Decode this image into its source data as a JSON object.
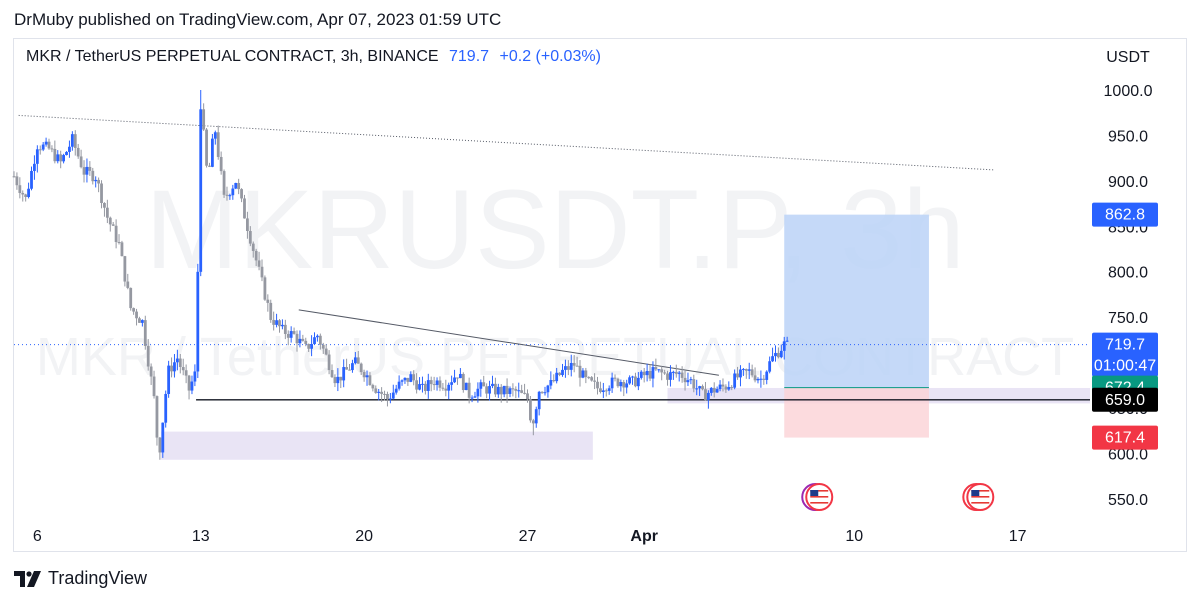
{
  "header": {
    "published": "DrMuby published on TradingView.com, Apr 07, 2023 01:59 UTC"
  },
  "legend": {
    "symbol": "MKR / TetherUS PERPETUAL CONTRACT, 3h, BINANCE",
    "last": "719.7",
    "change": "+0.2 (+0.03%)"
  },
  "footer": {
    "brand": "TradingView"
  },
  "colors": {
    "up": "#2962ff",
    "down": "#9598a1",
    "accent": "#2962ff",
    "target_zone": "#bbd2f7",
    "stop_zone": "#fbd2d6",
    "demand_zone": "#e3ddf3",
    "label_green": "#089981",
    "label_red": "#f23645",
    "label_black": "#000000"
  },
  "chart_data": {
    "type": "candlestick",
    "title": "MKR / TetherUS PERPETUAL CONTRACT, 3h, BINANCE",
    "watermark": "MKRUSDT.P, 3h",
    "watermark_sub": "MKR / TetherUS PERPETUAL CONTRACT",
    "y_unit": "USDT",
    "ylim": [
      530,
      1055
    ],
    "y_ticks": [
      "550.0",
      "600.0",
      "650.0",
      "700.0",
      "750.0",
      "800.0",
      "850.0",
      "900.0",
      "950.0",
      "1000.0"
    ],
    "x_ticks": [
      {
        "label": "6",
        "day": 6
      },
      {
        "label": "13",
        "day": 13
      },
      {
        "label": "20",
        "day": 20
      },
      {
        "label": "27",
        "day": 27
      },
      {
        "label": "Apr",
        "day": 32,
        "bold": true
      },
      {
        "label": "10",
        "day": 41
      },
      {
        "label": "17",
        "day": 48
      }
    ],
    "xlim_days": [
      5.0,
      51.1
    ],
    "x_axis_note": "days of March 2023; Apr 1 = day 32",
    "price_path": [
      [
        5.0,
        905
      ],
      [
        5.5,
        880
      ],
      [
        6.0,
        940
      ],
      [
        6.5,
        935
      ],
      [
        7.0,
        920
      ],
      [
        7.5,
        945
      ],
      [
        8.0,
        910
      ],
      [
        8.5,
        905
      ],
      [
        9.0,
        860
      ],
      [
        9.5,
        830
      ],
      [
        10.0,
        760
      ],
      [
        10.5,
        745
      ],
      [
        11.0,
        660
      ],
      [
        11.2,
        595
      ],
      [
        11.6,
        690
      ],
      [
        12.0,
        705
      ],
      [
        12.5,
        670
      ],
      [
        12.8,
        690
      ],
      [
        13.0,
        985
      ],
      [
        13.3,
        900
      ],
      [
        13.6,
        960
      ],
      [
        14.0,
        880
      ],
      [
        14.5,
        900
      ],
      [
        15.0,
        850
      ],
      [
        15.5,
        800
      ],
      [
        16.0,
        750
      ],
      [
        16.5,
        735
      ],
      [
        17.0,
        730
      ],
      [
        17.5,
        715
      ],
      [
        18.0,
        730
      ],
      [
        18.4,
        705
      ],
      [
        18.8,
        680
      ],
      [
        19.2,
        690
      ],
      [
        19.6,
        700
      ],
      [
        20.0,
        690
      ],
      [
        20.5,
        672
      ],
      [
        21.0,
        660
      ],
      [
        21.5,
        675
      ],
      [
        22.0,
        684
      ],
      [
        22.5,
        670
      ],
      [
        23.0,
        680
      ],
      [
        23.5,
        676
      ],
      [
        24.0,
        688
      ],
      [
        24.5,
        665
      ],
      [
        25.0,
        672
      ],
      [
        25.5,
        670
      ],
      [
        26.0,
        668
      ],
      [
        26.5,
        668
      ],
      [
        27.0,
        660
      ],
      [
        27.2,
        630
      ],
      [
        27.5,
        670
      ],
      [
        28.0,
        676
      ],
      [
        28.5,
        690
      ],
      [
        29.0,
        698
      ],
      [
        29.5,
        680
      ],
      [
        30.0,
        672
      ],
      [
        30.5,
        677
      ],
      [
        31.0,
        680
      ],
      [
        31.5,
        678
      ],
      [
        32.0,
        686
      ],
      [
        32.5,
        690
      ],
      [
        33.0,
        686
      ],
      [
        33.5,
        688
      ],
      [
        34.0,
        680
      ],
      [
        34.5,
        664
      ],
      [
        35.0,
        670
      ],
      [
        35.5,
        674
      ],
      [
        36.0,
        684
      ],
      [
        36.5,
        690
      ],
      [
        37.0,
        682
      ],
      [
        37.5,
        705
      ],
      [
        38.0,
        720
      ],
      [
        38.2,
        718
      ]
    ],
    "trendlines": [
      {
        "name": "upper resistance",
        "from": [
          5.2,
          972
        ],
        "to": [
          47.0,
          912
        ],
        "style": "dotted"
      },
      {
        "name": "descending resistance",
        "from": [
          17.2,
          758
        ],
        "to": [
          35.2,
          686
        ],
        "style": "solid"
      },
      {
        "name": "support",
        "from": [
          12.8,
          659
        ],
        "to": [
          51.1,
          659
        ],
        "style": "solid"
      }
    ],
    "horizontal_lines": [
      {
        "value": 719.7,
        "style": "dotted",
        "color": "#2962ff"
      }
    ],
    "zones": [
      {
        "name": "demand",
        "x": [
          11.3,
          29.8
        ],
        "y": [
          593,
          624
        ],
        "color": "#e3ddf3"
      },
      {
        "name": "entry band",
        "x": [
          33.0,
          51.1
        ],
        "y": [
          655,
          672
        ],
        "color": "#e3ddf3"
      },
      {
        "name": "target",
        "x": [
          38.0,
          44.2
        ],
        "y": [
          672.4,
          862.8
        ],
        "color": "#bbd2f7"
      },
      {
        "name": "stop",
        "x": [
          38.0,
          44.2
        ],
        "y": [
          617.4,
          672.4
        ],
        "color": "#fbd2d6"
      }
    ],
    "price_labels": [
      {
        "value": 862.8,
        "text": "862.8",
        "color": "#2962ff"
      },
      {
        "value": 719.7,
        "text": "719.7",
        "sub": "01:00:47",
        "color": "#2962ff"
      },
      {
        "value": 672.4,
        "text": "672.4",
        "color": "#089981"
      },
      {
        "value": 659.0,
        "text": "659.0",
        "color": "#000000"
      },
      {
        "value": 617.4,
        "text": "617.4",
        "color": "#f23645"
      }
    ],
    "event_markers": [
      {
        "day": 39.5,
        "icon": "us-flag-event-icon"
      },
      {
        "day": 46.4,
        "icon": "us-flag-event-icon"
      }
    ],
    "grid": false
  }
}
